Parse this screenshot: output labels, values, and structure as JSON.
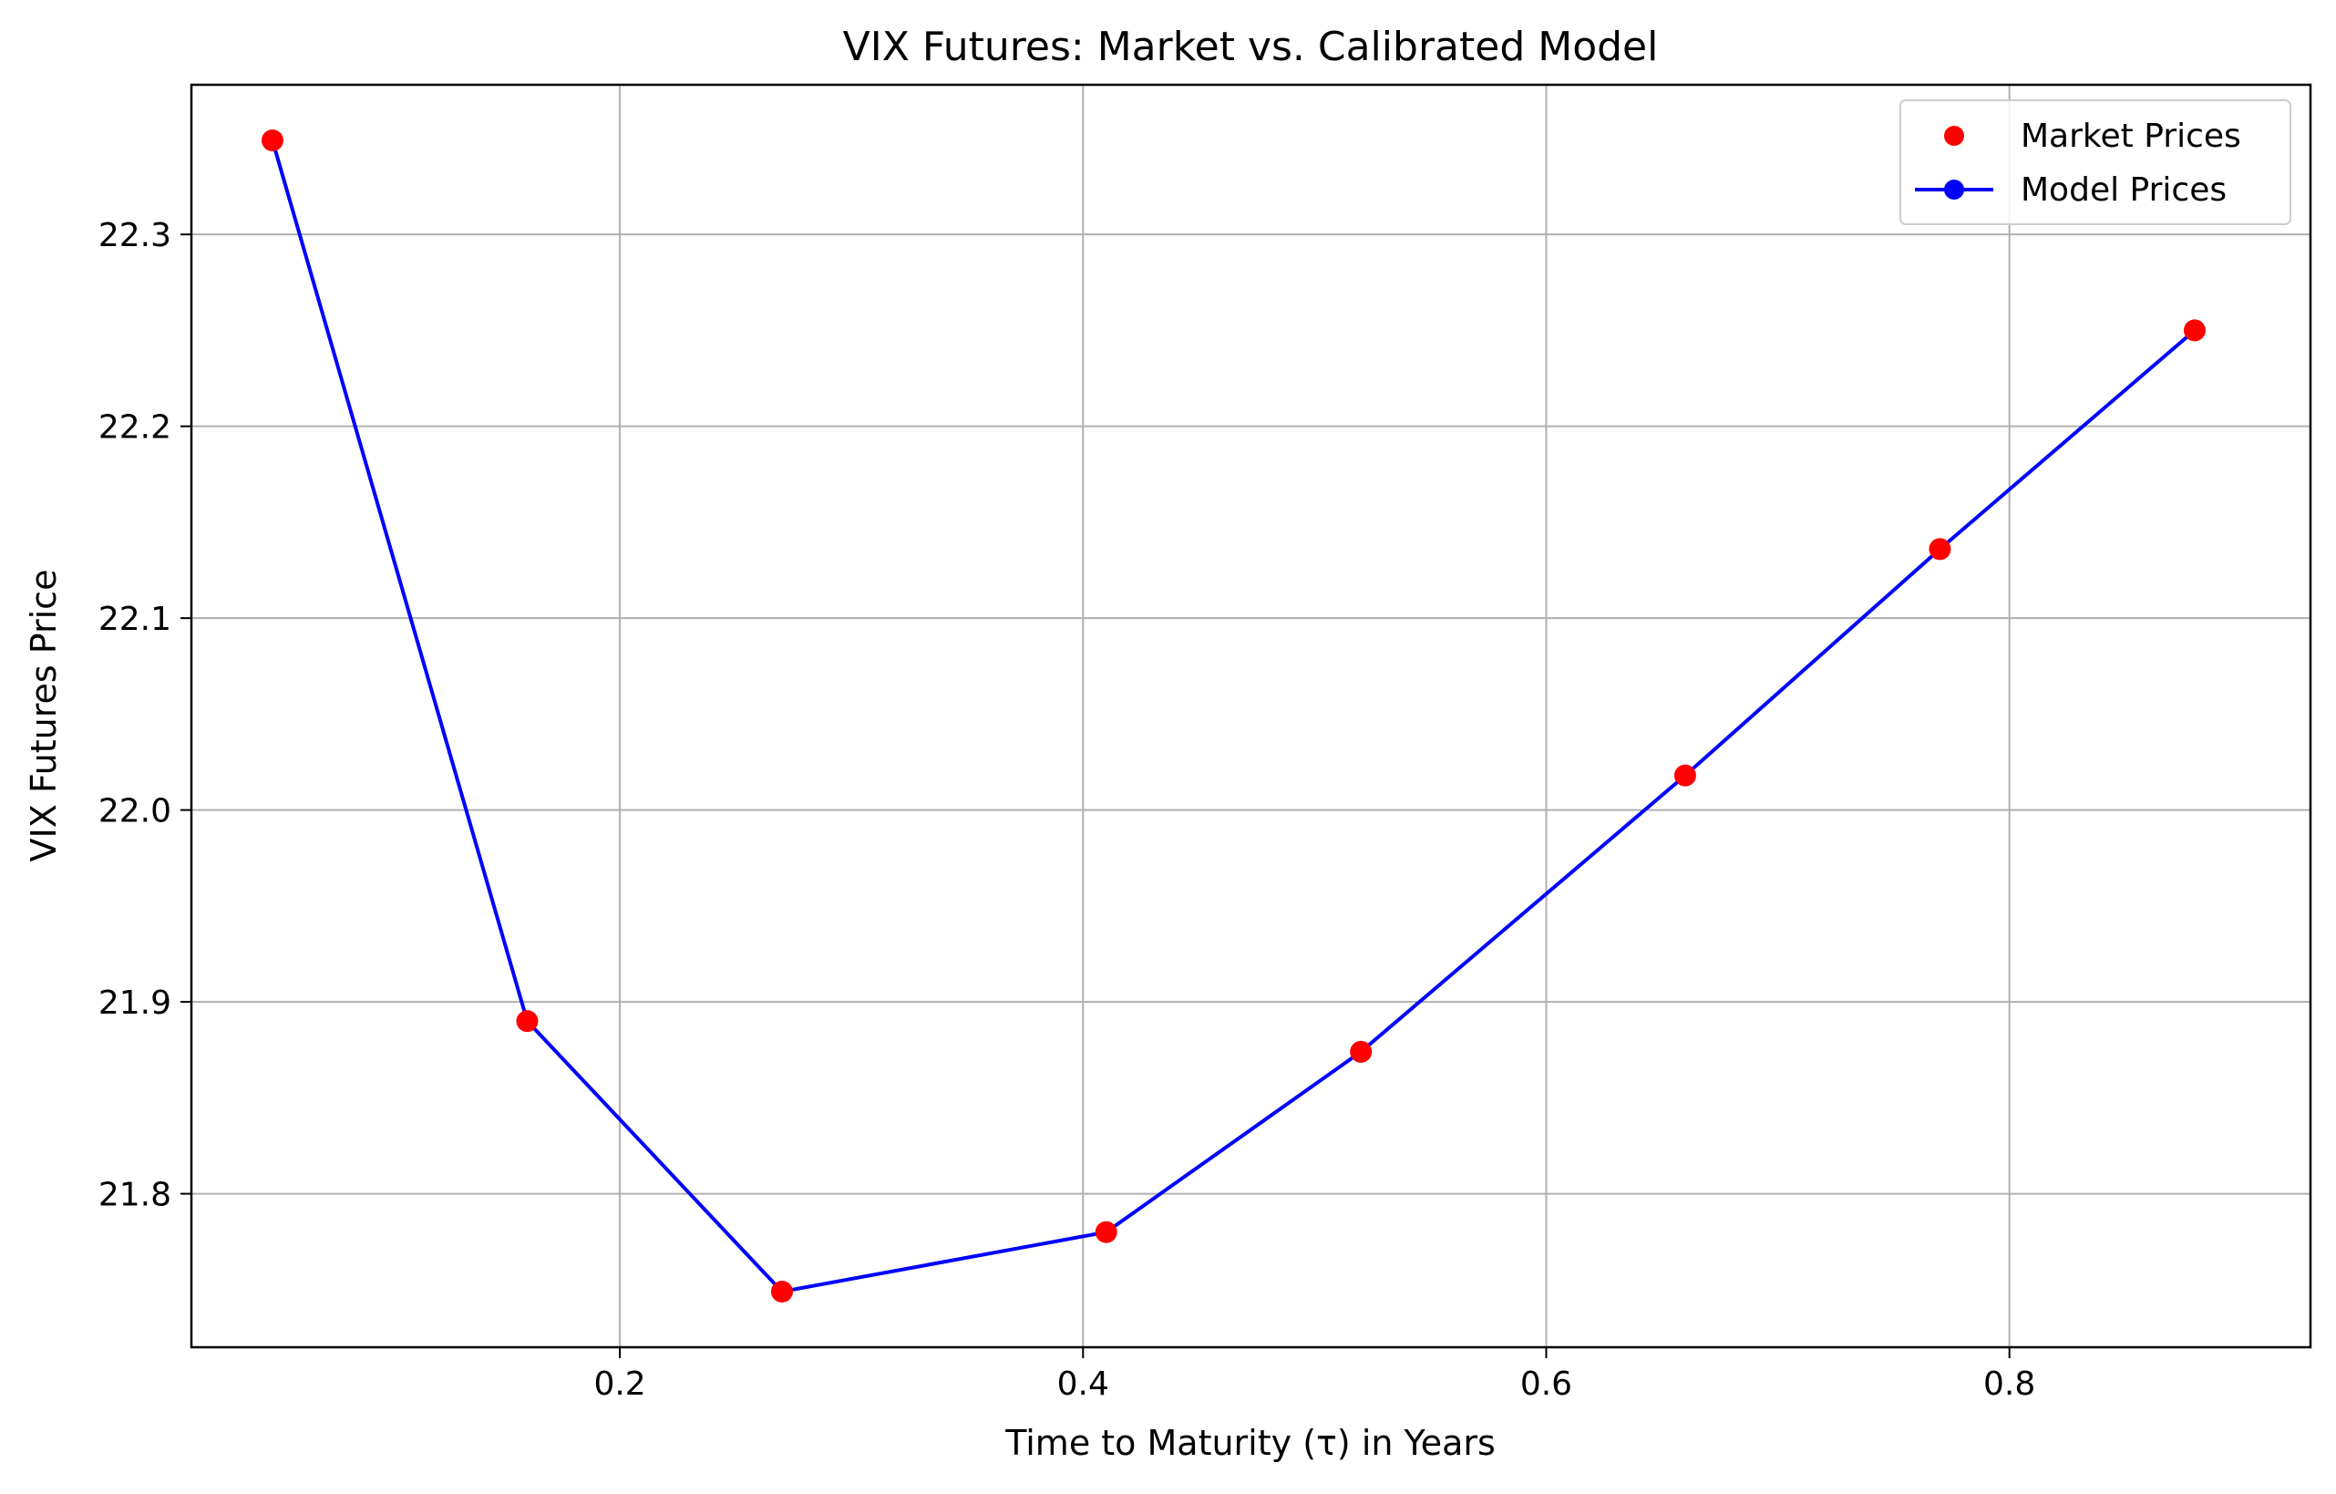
{
  "chart_data": {
    "type": "line",
    "title": "VIX Futures: Market vs. Calibrated Model",
    "xlabel": "Time to Maturity (τ) in Years",
    "ylabel": "VIX Futures Price",
    "xlim": [
      0.015,
      0.93
    ],
    "ylim": [
      21.72,
      22.378
    ],
    "xticks": [
      0.2,
      0.4,
      0.6,
      0.8
    ],
    "xtick_labels": [
      "0.2",
      "0.4",
      "0.6",
      "0.8"
    ],
    "yticks": [
      21.8,
      21.9,
      22.0,
      22.1,
      22.2,
      22.3
    ],
    "ytick_labels": [
      "21.8",
      "21.9",
      "22.0",
      "22.1",
      "22.2",
      "22.3"
    ],
    "grid": true,
    "legend_position": "top-right",
    "x": [
      0.05,
      0.16,
      0.27,
      0.41,
      0.52,
      0.66,
      0.77,
      0.88
    ],
    "series": [
      {
        "name": "Market Prices",
        "kind": "scatter",
        "color": "#ff0000",
        "values": [
          22.349,
          21.89,
          21.749,
          21.78,
          21.874,
          22.018,
          22.136,
          22.25
        ]
      },
      {
        "name": "Model Prices",
        "kind": "line-marker",
        "color": "#0000ff",
        "values": [
          22.349,
          21.89,
          21.749,
          21.78,
          21.874,
          22.018,
          22.136,
          22.25
        ]
      }
    ]
  }
}
